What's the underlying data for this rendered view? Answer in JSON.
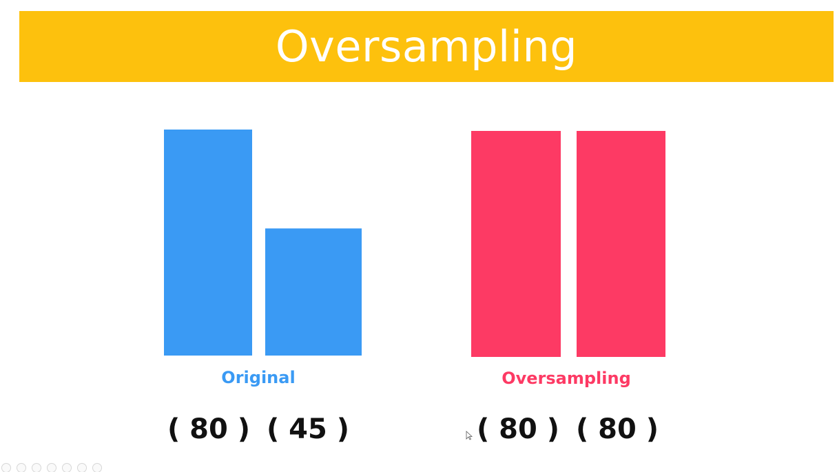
{
  "colors": {
    "banner": "#fdc10d",
    "original": "#3a9af4",
    "oversampling": "#fd3a64",
    "title_text": "#ffffff",
    "count_text": "#111111"
  },
  "title": "Oversampling",
  "chart_data": [
    {
      "type": "bar",
      "title": "Original",
      "categories": [
        "( 80 )",
        "( 45 )"
      ],
      "values": [
        80,
        45
      ],
      "color": "#3a9af4",
      "ylim": [
        0,
        80
      ]
    },
    {
      "type": "bar",
      "title": "Oversampling",
      "categories": [
        "( 80 )",
        "( 80 )"
      ],
      "values": [
        80,
        80
      ],
      "color": "#fd3a64",
      "ylim": [
        0,
        80
      ]
    }
  ],
  "toolbar": {
    "icons": [
      "back-icon",
      "forward-icon",
      "pen-icon",
      "slides-icon",
      "zoom-icon",
      "subtitles-icon",
      "more-icon"
    ]
  }
}
